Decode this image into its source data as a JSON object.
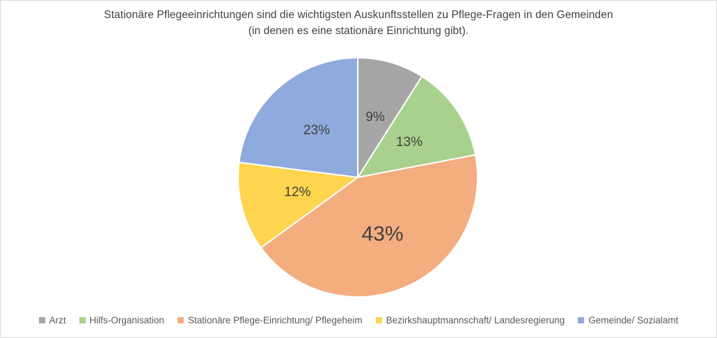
{
  "frame": {
    "background": "#ffffff",
    "border_color": "#d9d9d9"
  },
  "chart_data": {
    "type": "pie",
    "title": "Stationäre Pflegeeinrichtungen sind die wichtigsten Auskunftsstellen zu Pflege-Fragen in den Gemeinden (in denen es eine stationäre Einrichtung gibt).",
    "title_lines": [
      "Stationäre Pflegeeinrichtungen sind die wichtigsten Auskunftsstellen zu Pflege-Fragen in den Gemeinden",
      "(in denen es eine stationäre Einrichtung gibt)."
    ],
    "unit": "%",
    "start_angle_deg": 0,
    "direction": "clockwise",
    "legend_position": "bottom",
    "title_color": "#404040",
    "label_color": "#404040",
    "legend_text_color": "#595959",
    "slice_border_color": "#ffffff",
    "slices": [
      {
        "key": "arzt",
        "label": "Arzt",
        "value": 9,
        "pct_label": "9%",
        "color": "#a6a6a6"
      },
      {
        "key": "hilfs-organisation",
        "label": "Hilfs-Organisation",
        "value": 13,
        "pct_label": "13%",
        "color": "#a9d18e"
      },
      {
        "key": "stationaere-pflege-einrichtung-pflegeheim",
        "label": "Stationäre Pflege-Einrichtung/ Pflegeheim",
        "value": 43,
        "pct_label": "43%",
        "color": "#f3ad7f"
      },
      {
        "key": "bezirkshauptmannschaft-landesregierung",
        "label": "Bezirkshauptmannschaft/ Landesregierung",
        "value": 12,
        "pct_label": "12%",
        "color": "#ffd54f"
      },
      {
        "key": "gemeinde-sozialamt",
        "label": "Gemeinde/ Sozialamt",
        "value": 23,
        "pct_label": "23%",
        "color": "#8faadc"
      }
    ]
  }
}
